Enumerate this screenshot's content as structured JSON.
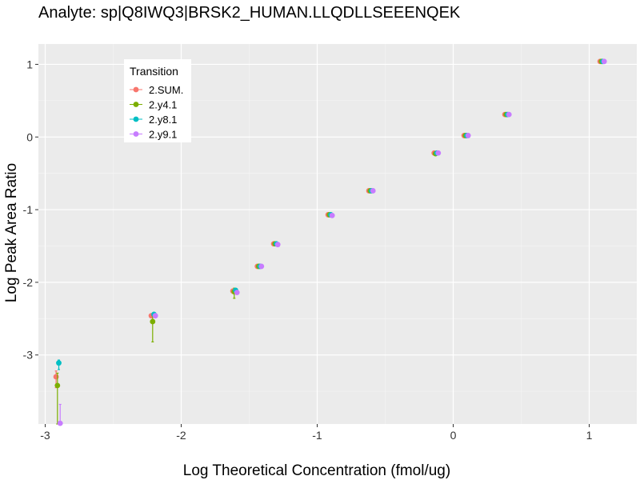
{
  "chart_data": {
    "type": "scatter",
    "title": "Analyte: sp|Q8IWQ3|BRSK2_HUMAN.LLQDLLSEEENQEK",
    "xlabel": "Log Theoretical Concentration (fmol/ug)",
    "ylabel": "Log Peak Area Ratio",
    "xlim": [
      -3.05,
      1.35
    ],
    "ylim": [
      -3.95,
      1.28
    ],
    "x_ticks": [
      -3,
      -2,
      -1,
      0,
      1
    ],
    "y_ticks": [
      -3,
      -2,
      -1,
      0,
      1
    ],
    "x_tick_labels": [
      "-3",
      "-2",
      "-1",
      "0",
      "1"
    ],
    "y_tick_labels": [
      "-3",
      "-2",
      "-1",
      "0",
      "1"
    ],
    "grid": true,
    "background": "#EBEBEB",
    "legend": {
      "title": "Transition",
      "position": "top-left"
    },
    "series": [
      {
        "name": "2.SUM.",
        "color": "#F8766D",
        "points": [
          {
            "x": -2.92,
            "y": -3.3,
            "ylo": -3.45,
            "yhi": -3.22
          },
          {
            "x": -2.22,
            "y": -2.46
          },
          {
            "x": -1.62,
            "y": -2.12
          },
          {
            "x": -1.44,
            "y": -1.78
          },
          {
            "x": -1.32,
            "y": -1.47
          },
          {
            "x": -0.92,
            "y": -1.07
          },
          {
            "x": -0.62,
            "y": -0.74
          },
          {
            "x": -0.14,
            "y": -0.22
          },
          {
            "x": 0.08,
            "y": 0.02
          },
          {
            "x": 0.38,
            "y": 0.31
          },
          {
            "x": 1.08,
            "y": 1.04
          }
        ]
      },
      {
        "name": "2.y4.1",
        "color": "#7CAE00",
        "points": [
          {
            "x": -2.91,
            "y": -3.42,
            "ylo": -3.95,
            "yhi": -3.25
          },
          {
            "x": -2.21,
            "y": -2.54,
            "ylo": -2.82,
            "yhi": -2.46
          },
          {
            "x": -1.61,
            "y": -2.13,
            "ylo": -2.22,
            "yhi": -2.08
          },
          {
            "x": -1.43,
            "y": -1.78
          },
          {
            "x": -1.31,
            "y": -1.47
          },
          {
            "x": -0.91,
            "y": -1.07
          },
          {
            "x": -0.61,
            "y": -0.74
          },
          {
            "x": -0.13,
            "y": -0.23
          },
          {
            "x": 0.09,
            "y": 0.02
          },
          {
            "x": 0.39,
            "y": 0.31
          },
          {
            "x": 1.09,
            "y": 1.04
          }
        ]
      },
      {
        "name": "2.y8.1",
        "color": "#00BFC4",
        "points": [
          {
            "x": -2.9,
            "y": -3.11,
            "ylo": -3.2,
            "yhi": -3.07
          },
          {
            "x": -2.2,
            "y": -2.44
          },
          {
            "x": -1.6,
            "y": -2.11
          },
          {
            "x": -1.42,
            "y": -1.78
          },
          {
            "x": -1.3,
            "y": -1.47
          },
          {
            "x": -0.9,
            "y": -1.07
          },
          {
            "x": -0.6,
            "y": -0.74
          },
          {
            "x": -0.12,
            "y": -0.22
          },
          {
            "x": 0.1,
            "y": 0.02
          },
          {
            "x": 0.4,
            "y": 0.31
          },
          {
            "x": 1.1,
            "y": 1.04
          }
        ]
      },
      {
        "name": "2.y9.1",
        "color": "#C77CFF",
        "points": [
          {
            "x": -2.89,
            "y": -3.94,
            "ylo": -3.95,
            "yhi": -3.68
          },
          {
            "x": -2.19,
            "y": -2.46
          },
          {
            "x": -1.59,
            "y": -2.14
          },
          {
            "x": -1.41,
            "y": -1.78
          },
          {
            "x": -1.29,
            "y": -1.48
          },
          {
            "x": -0.89,
            "y": -1.08
          },
          {
            "x": -0.59,
            "y": -0.74
          },
          {
            "x": -0.11,
            "y": -0.22
          },
          {
            "x": 0.11,
            "y": 0.02
          },
          {
            "x": 0.41,
            "y": 0.31
          },
          {
            "x": 1.11,
            "y": 1.04
          }
        ]
      }
    ]
  }
}
